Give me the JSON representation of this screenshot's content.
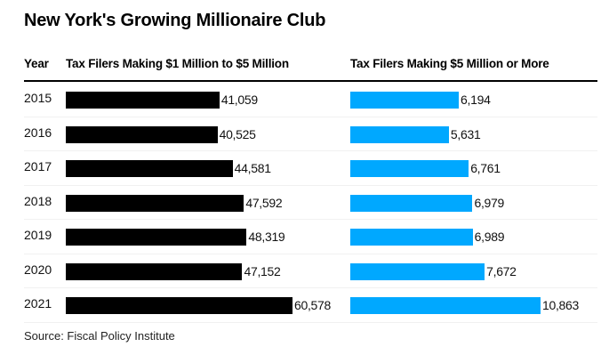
{
  "chart_data": {
    "type": "bar",
    "title": "New York's Growing Millionaire Club",
    "orientation": "horizontal",
    "columns": {
      "year_header": "Year",
      "series_headers": [
        "Tax Filers Making $1 Million to $5 Million",
        "Tax Filers Making $5 Million or More"
      ]
    },
    "categories": [
      "2015",
      "2016",
      "2017",
      "2018",
      "2019",
      "2020",
      "2021"
    ],
    "series": [
      {
        "name": "Tax Filers Making $1 Million to $5 Million",
        "color": "#000000",
        "values": [
          41059,
          40525,
          44581,
          47592,
          48319,
          47152,
          60578
        ],
        "labels": [
          "41,059",
          "40,525",
          "44,581",
          "47,592",
          "48,319",
          "47,152",
          "60,578"
        ]
      },
      {
        "name": "Tax Filers Making $5 Million or More",
        "color": "#00a8ff",
        "values": [
          6194,
          5631,
          6761,
          6979,
          6989,
          7672,
          10863
        ],
        "labels": [
          "6,194",
          "5,631",
          "6,761",
          "6,979",
          "6,989",
          "7,672",
          "10,863"
        ]
      }
    ],
    "xlabel": "",
    "ylabel": "",
    "grid": false,
    "legend": "none",
    "source": "Source: Fiscal Policy Institute"
  }
}
